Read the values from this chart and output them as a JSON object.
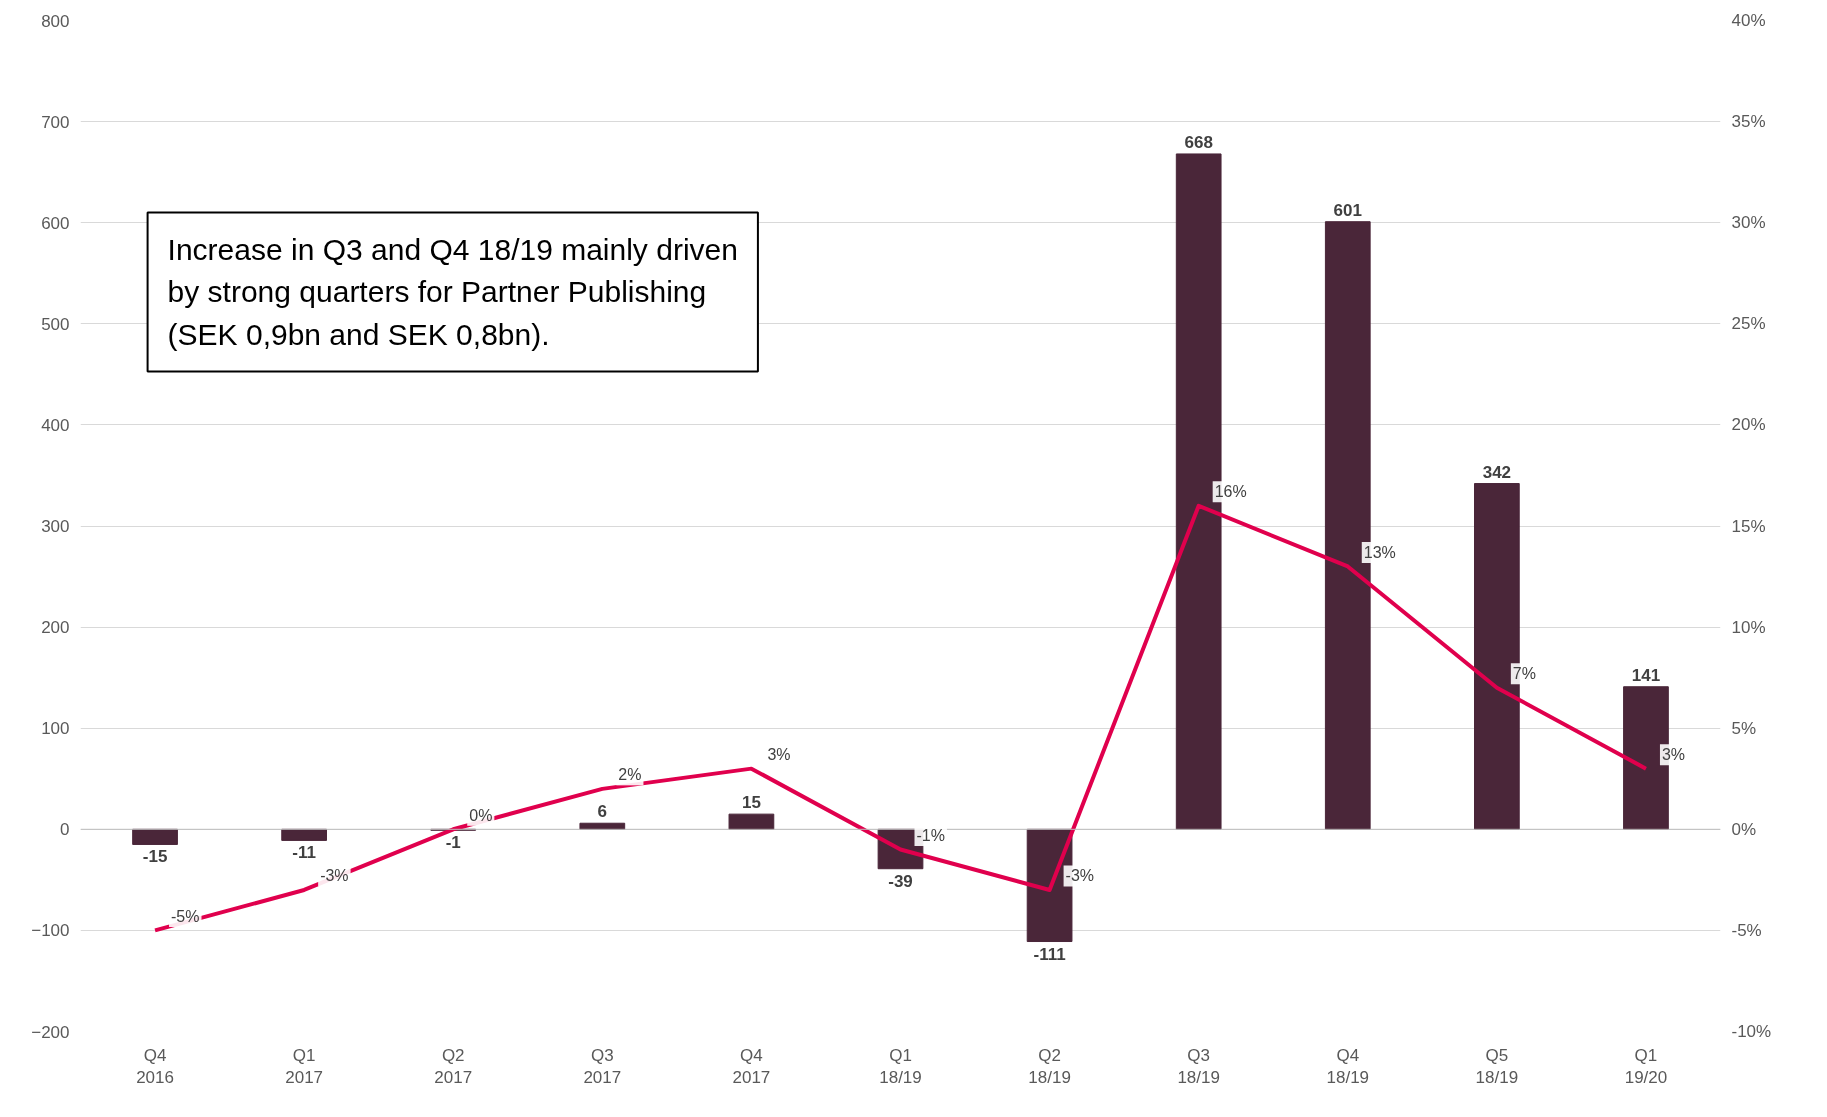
{
  "chart_data": {
    "type": "bar",
    "categories": [
      "Q4\n2016",
      "Q1\n2017",
      "Q2\n2017",
      "Q3\n2017",
      "Q4\n2017",
      "Q1\n18/19",
      "Q2\n18/19",
      "Q3\n18/19",
      "Q4\n18/19",
      "Q5\n18/19",
      "Q1\n19/20"
    ],
    "series": [
      {
        "color": "#4a2639",
        "values": [
          -15,
          -11,
          -1,
          6,
          15,
          -39,
          -111,
          668,
          601,
          342,
          141
        ],
        "data_labels": true
      },
      {
        "type": "line",
        "axis": "y2",
        "color": "#e0004d",
        "values": [
          -5,
          -3,
          0,
          2,
          3,
          -1,
          -3,
          16,
          13,
          7,
          3
        ],
        "value_labels": [
          "-5%",
          "-3%",
          "0%",
          "2%",
          "3%",
          "-1%",
          "-3%",
          "16%",
          "13%",
          "7%",
          "3%"
        ]
      }
    ],
    "ylim": [
      -200,
      800
    ],
    "yticks": [
      -200,
      -100,
      0,
      100,
      200,
      300,
      400,
      500,
      600,
      700,
      800
    ],
    "y2lim": [
      -10,
      40
    ],
    "y2ticks": [
      {
        "value": -10,
        "label": "-10%"
      },
      {
        "value": -5,
        "label": "-5%"
      },
      {
        "value": 0,
        "label": "0%"
      },
      {
        "value": 5,
        "label": "5%"
      },
      {
        "value": 10,
        "label": "10%"
      },
      {
        "value": 15,
        "label": "15%"
      },
      {
        "value": 20,
        "label": "20%"
      },
      {
        "value": 25,
        "label": "25%"
      },
      {
        "value": 30,
        "label": "30%"
      },
      {
        "value": 35,
        "label": "35%"
      },
      {
        "value": 40,
        "label": "40%"
      }
    ],
    "grid": "y",
    "marker": "none",
    "line_style": "solid",
    "annotations": [
      "Increase in Q3 and Q4 18/19 mainly driven\nby strong quarters for Partner Publishing\n(SEK 0,9bn and SEK 0,8bn)."
    ]
  }
}
